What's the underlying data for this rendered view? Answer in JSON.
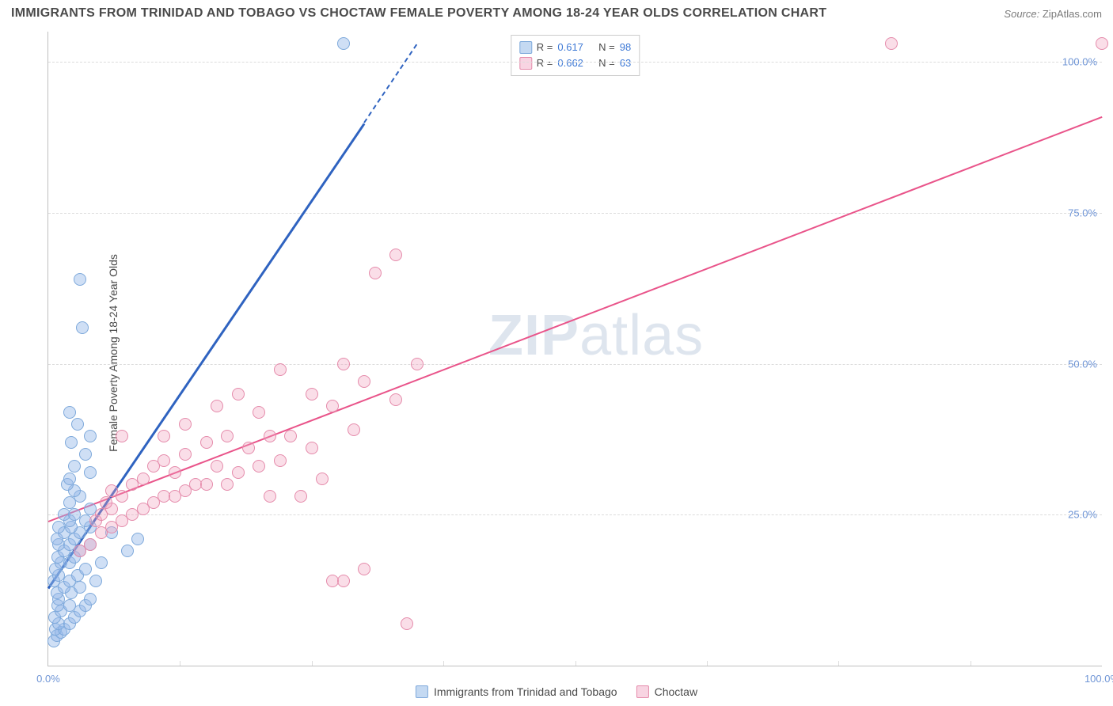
{
  "title": "IMMIGRANTS FROM TRINIDAD AND TOBAGO VS CHOCTAW FEMALE POVERTY AMONG 18-24 YEAR OLDS CORRELATION CHART",
  "source_label": "Source:",
  "source_value": "ZipAtlas.com",
  "ylabel": "Female Poverty Among 18-24 Year Olds",
  "watermark_prefix": "ZIP",
  "watermark_suffix": "atlas",
  "chart": {
    "type": "scatter",
    "xlim": [
      0,
      100
    ],
    "ylim": [
      0,
      105
    ],
    "xticks": [
      0,
      100
    ],
    "xtick_labels": [
      "0.0%",
      "100.0%"
    ],
    "yticks": [
      25,
      50,
      75,
      100
    ],
    "ytick_labels": [
      "25.0%",
      "50.0%",
      "75.0%",
      "100.0%"
    ],
    "y_gridlines": [
      25,
      50,
      75,
      100
    ],
    "x_tick_marks": [
      12.5,
      25,
      37.5,
      50,
      62.5,
      75,
      87.5
    ],
    "background_color": "#ffffff",
    "grid_color": "#dcdcdc",
    "axis_color": "#bfbfbf",
    "tick_color": "#6f95d6",
    "series": [
      {
        "key": "a",
        "name": "Immigrants from Trinidad and Tobago",
        "fill": "rgba(148,185,232,0.45)",
        "stroke": "#7ea9db",
        "R": "0.617",
        "N": "98",
        "trend_color": "#2f63c0",
        "trend": {
          "x1": 0,
          "y1": 13,
          "x2_solid": 30,
          "y2_solid": 90,
          "x2_dash": 35,
          "y2_dash": 103
        },
        "points": [
          [
            0.5,
            4
          ],
          [
            0.8,
            5
          ],
          [
            1.2,
            5.5
          ],
          [
            0.7,
            6
          ],
          [
            1.5,
            6
          ],
          [
            1,
            7
          ],
          [
            2,
            7
          ],
          [
            0.6,
            8
          ],
          [
            2.5,
            8
          ],
          [
            1.2,
            9
          ],
          [
            3,
            9
          ],
          [
            0.9,
            10
          ],
          [
            2,
            10
          ],
          [
            3.5,
            10
          ],
          [
            1,
            11
          ],
          [
            4,
            11
          ],
          [
            0.8,
            12
          ],
          [
            2.2,
            12
          ],
          [
            1.5,
            13
          ],
          [
            3,
            13
          ],
          [
            0.5,
            14
          ],
          [
            2,
            14
          ],
          [
            4.5,
            14
          ],
          [
            1,
            15
          ],
          [
            2.8,
            15
          ],
          [
            0.7,
            16
          ],
          [
            3.5,
            16
          ],
          [
            1.2,
            17
          ],
          [
            2,
            17
          ],
          [
            5,
            17
          ],
          [
            0.9,
            18
          ],
          [
            2.5,
            18
          ],
          [
            1.5,
            19
          ],
          [
            3,
            19
          ],
          [
            7.5,
            19
          ],
          [
            1,
            20
          ],
          [
            2,
            20
          ],
          [
            4,
            20
          ],
          [
            0.8,
            21
          ],
          [
            2.5,
            21
          ],
          [
            8.5,
            21
          ],
          [
            1.5,
            22
          ],
          [
            3,
            22
          ],
          [
            6,
            22
          ],
          [
            1,
            23
          ],
          [
            2.2,
            23
          ],
          [
            4,
            23
          ],
          [
            2,
            24
          ],
          [
            3.5,
            24
          ],
          [
            1.5,
            25
          ],
          [
            2.5,
            25
          ],
          [
            4,
            26
          ],
          [
            2,
            27
          ],
          [
            3,
            28
          ],
          [
            2.5,
            29
          ],
          [
            1.8,
            30
          ],
          [
            2,
            31
          ],
          [
            4,
            32
          ],
          [
            2.5,
            33
          ],
          [
            3.5,
            35
          ],
          [
            2.2,
            37
          ],
          [
            4,
            38
          ],
          [
            2.8,
            40
          ],
          [
            2,
            42
          ],
          [
            3.2,
            56
          ],
          [
            3,
            64
          ],
          [
            28,
            103
          ]
        ]
      },
      {
        "key": "b",
        "name": "Choctaw",
        "fill": "rgba(240,160,190,0.35)",
        "stroke": "#e58bab",
        "R": "0.662",
        "N": "63",
        "trend_color": "#e9548a",
        "trend": {
          "x1": 0,
          "y1": 24,
          "x2_solid": 100,
          "y2_solid": 91
        },
        "points": [
          [
            3,
            19
          ],
          [
            4,
            20
          ],
          [
            5,
            22
          ],
          [
            6,
            23
          ],
          [
            4.5,
            24
          ],
          [
            7,
            24
          ],
          [
            5,
            25
          ],
          [
            8,
            25
          ],
          [
            6,
            26
          ],
          [
            9,
            26
          ],
          [
            5.5,
            27
          ],
          [
            10,
            27
          ],
          [
            7,
            28
          ],
          [
            11,
            28
          ],
          [
            12,
            28
          ],
          [
            6,
            29
          ],
          [
            13,
            29
          ],
          [
            8,
            30
          ],
          [
            14,
            30
          ],
          [
            15,
            30
          ],
          [
            17,
            30
          ],
          [
            9,
            31
          ],
          [
            12,
            32
          ],
          [
            18,
            32
          ],
          [
            10,
            33
          ],
          [
            16,
            33
          ],
          [
            20,
            33
          ],
          [
            11,
            34
          ],
          [
            22,
            34
          ],
          [
            13,
            35
          ],
          [
            19,
            36
          ],
          [
            25,
            36
          ],
          [
            15,
            37
          ],
          [
            11,
            38
          ],
          [
            21,
            38
          ],
          [
            23,
            38
          ],
          [
            17,
            38
          ],
          [
            29,
            39
          ],
          [
            13,
            40
          ],
          [
            20,
            42
          ],
          [
            16,
            43
          ],
          [
            27,
            43
          ],
          [
            33,
            44
          ],
          [
            25,
            45
          ],
          [
            18,
            45
          ],
          [
            30,
            47
          ],
          [
            22,
            49
          ],
          [
            35,
            50
          ],
          [
            28,
            50
          ],
          [
            7,
            38
          ],
          [
            27,
            14
          ],
          [
            28,
            14
          ],
          [
            30,
            16
          ],
          [
            21,
            28
          ],
          [
            24,
            28
          ],
          [
            26,
            31
          ],
          [
            34,
            7
          ],
          [
            31,
            65
          ],
          [
            33,
            68
          ],
          [
            80,
            103
          ],
          [
            100,
            103
          ]
        ]
      }
    ]
  },
  "legend_top": {
    "r_label": "R  =",
    "n_label": "N  ="
  }
}
